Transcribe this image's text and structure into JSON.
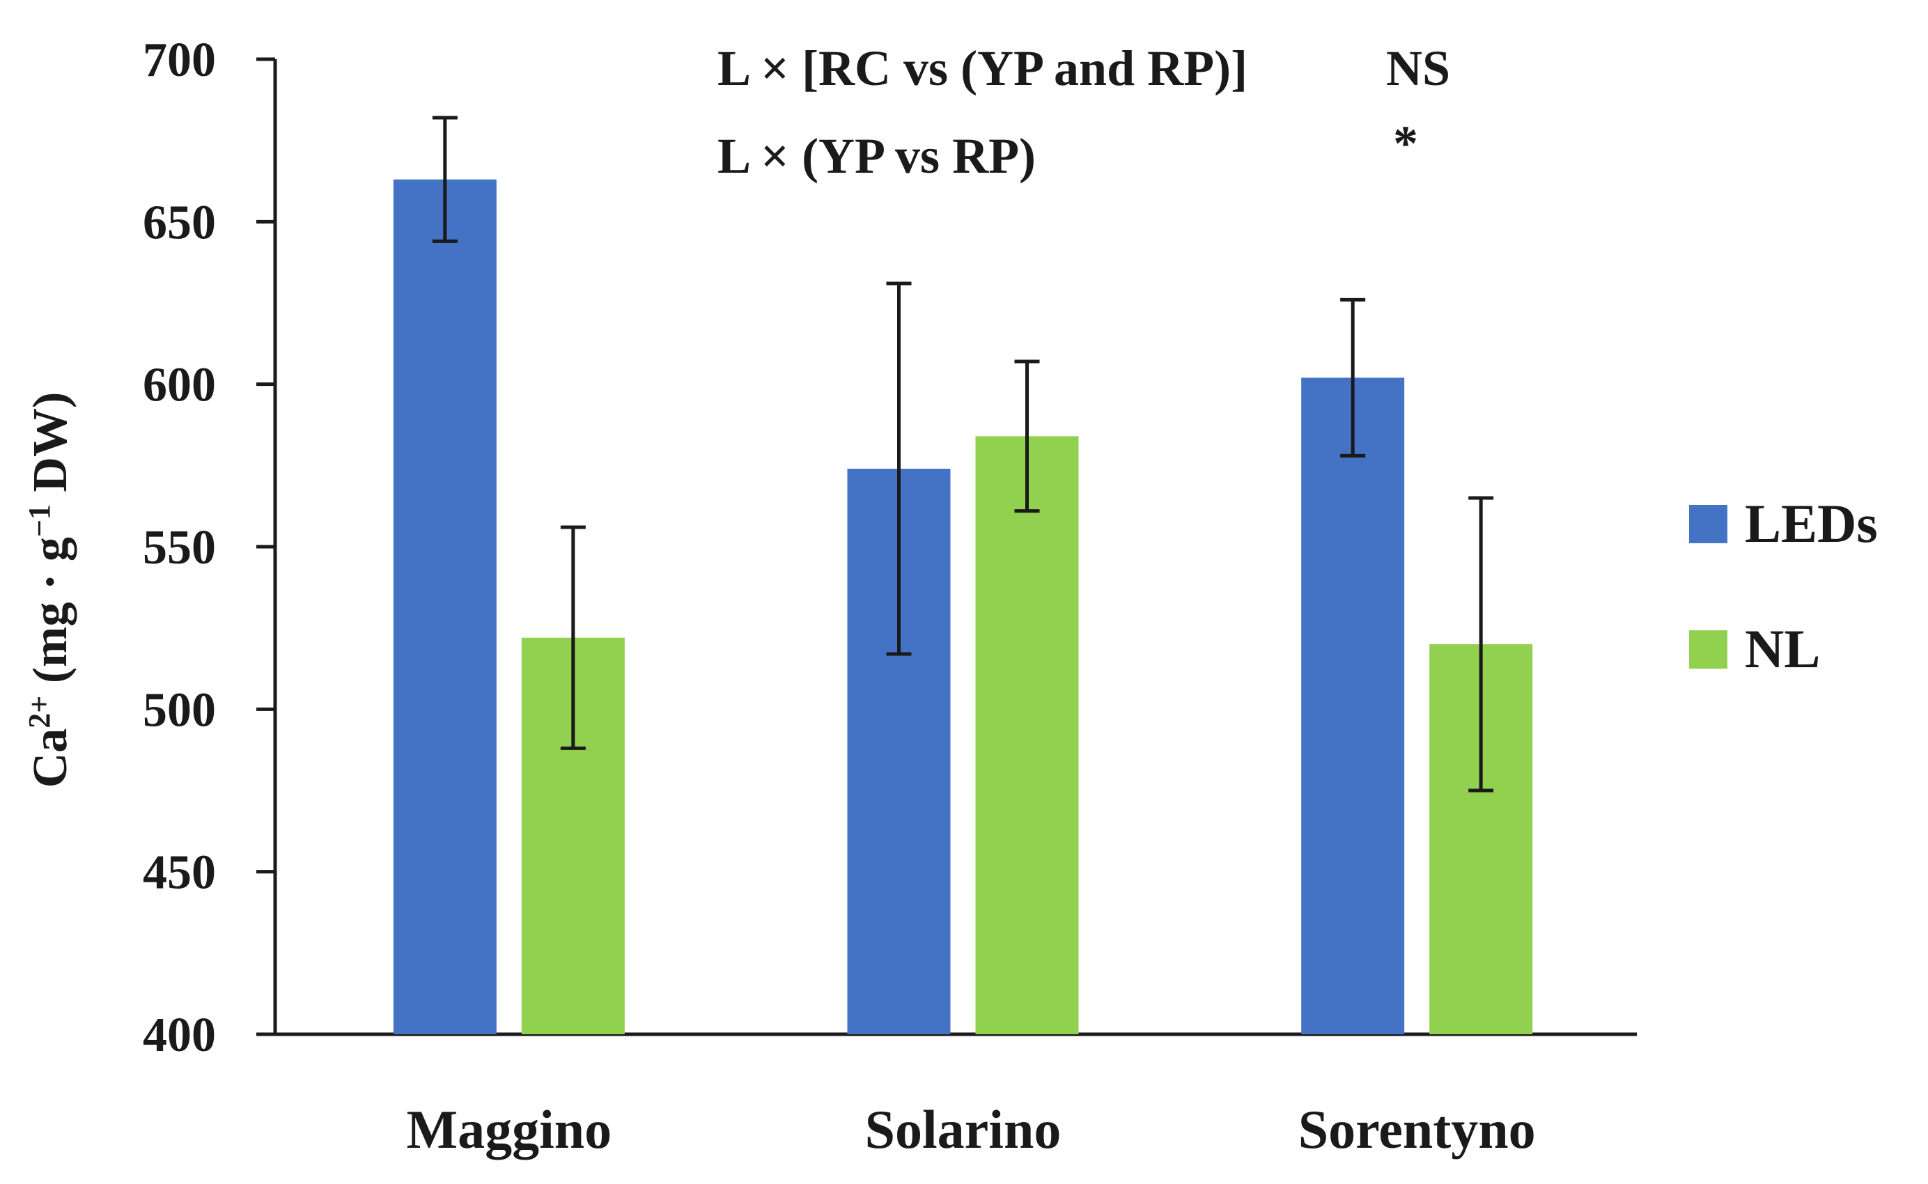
{
  "chart_data": {
    "type": "bar",
    "title": "",
    "xlabel": "",
    "ylabel": "Ca2+ (mg · g−1 DW)",
    "ylabel_parts": {
      "base": "Ca",
      "sup1": "2+",
      "mid": " (mg · g",
      "sup2": "−1",
      "end": " DW)"
    },
    "ylim": [
      400,
      700
    ],
    "yticks": [
      400,
      450,
      500,
      550,
      600,
      650,
      700
    ],
    "categories": [
      "Maggino",
      "Solarino",
      "Sorentyno"
    ],
    "series": [
      {
        "name": "LEDs",
        "color": "#4472c4",
        "values": [
          663,
          574,
          602
        ],
        "error": [
          19,
          57,
          24
        ]
      },
      {
        "name": "NL",
        "color": "#92d050",
        "values": [
          522,
          584,
          520
        ],
        "error": [
          34,
          23,
          45
        ]
      }
    ],
    "legend_position": "right",
    "annotations": [
      {
        "label": "L × [RC vs (YP and RP)]",
        "value": "NS"
      },
      {
        "label": "L × (YP vs RP)",
        "value": "*"
      }
    ]
  }
}
